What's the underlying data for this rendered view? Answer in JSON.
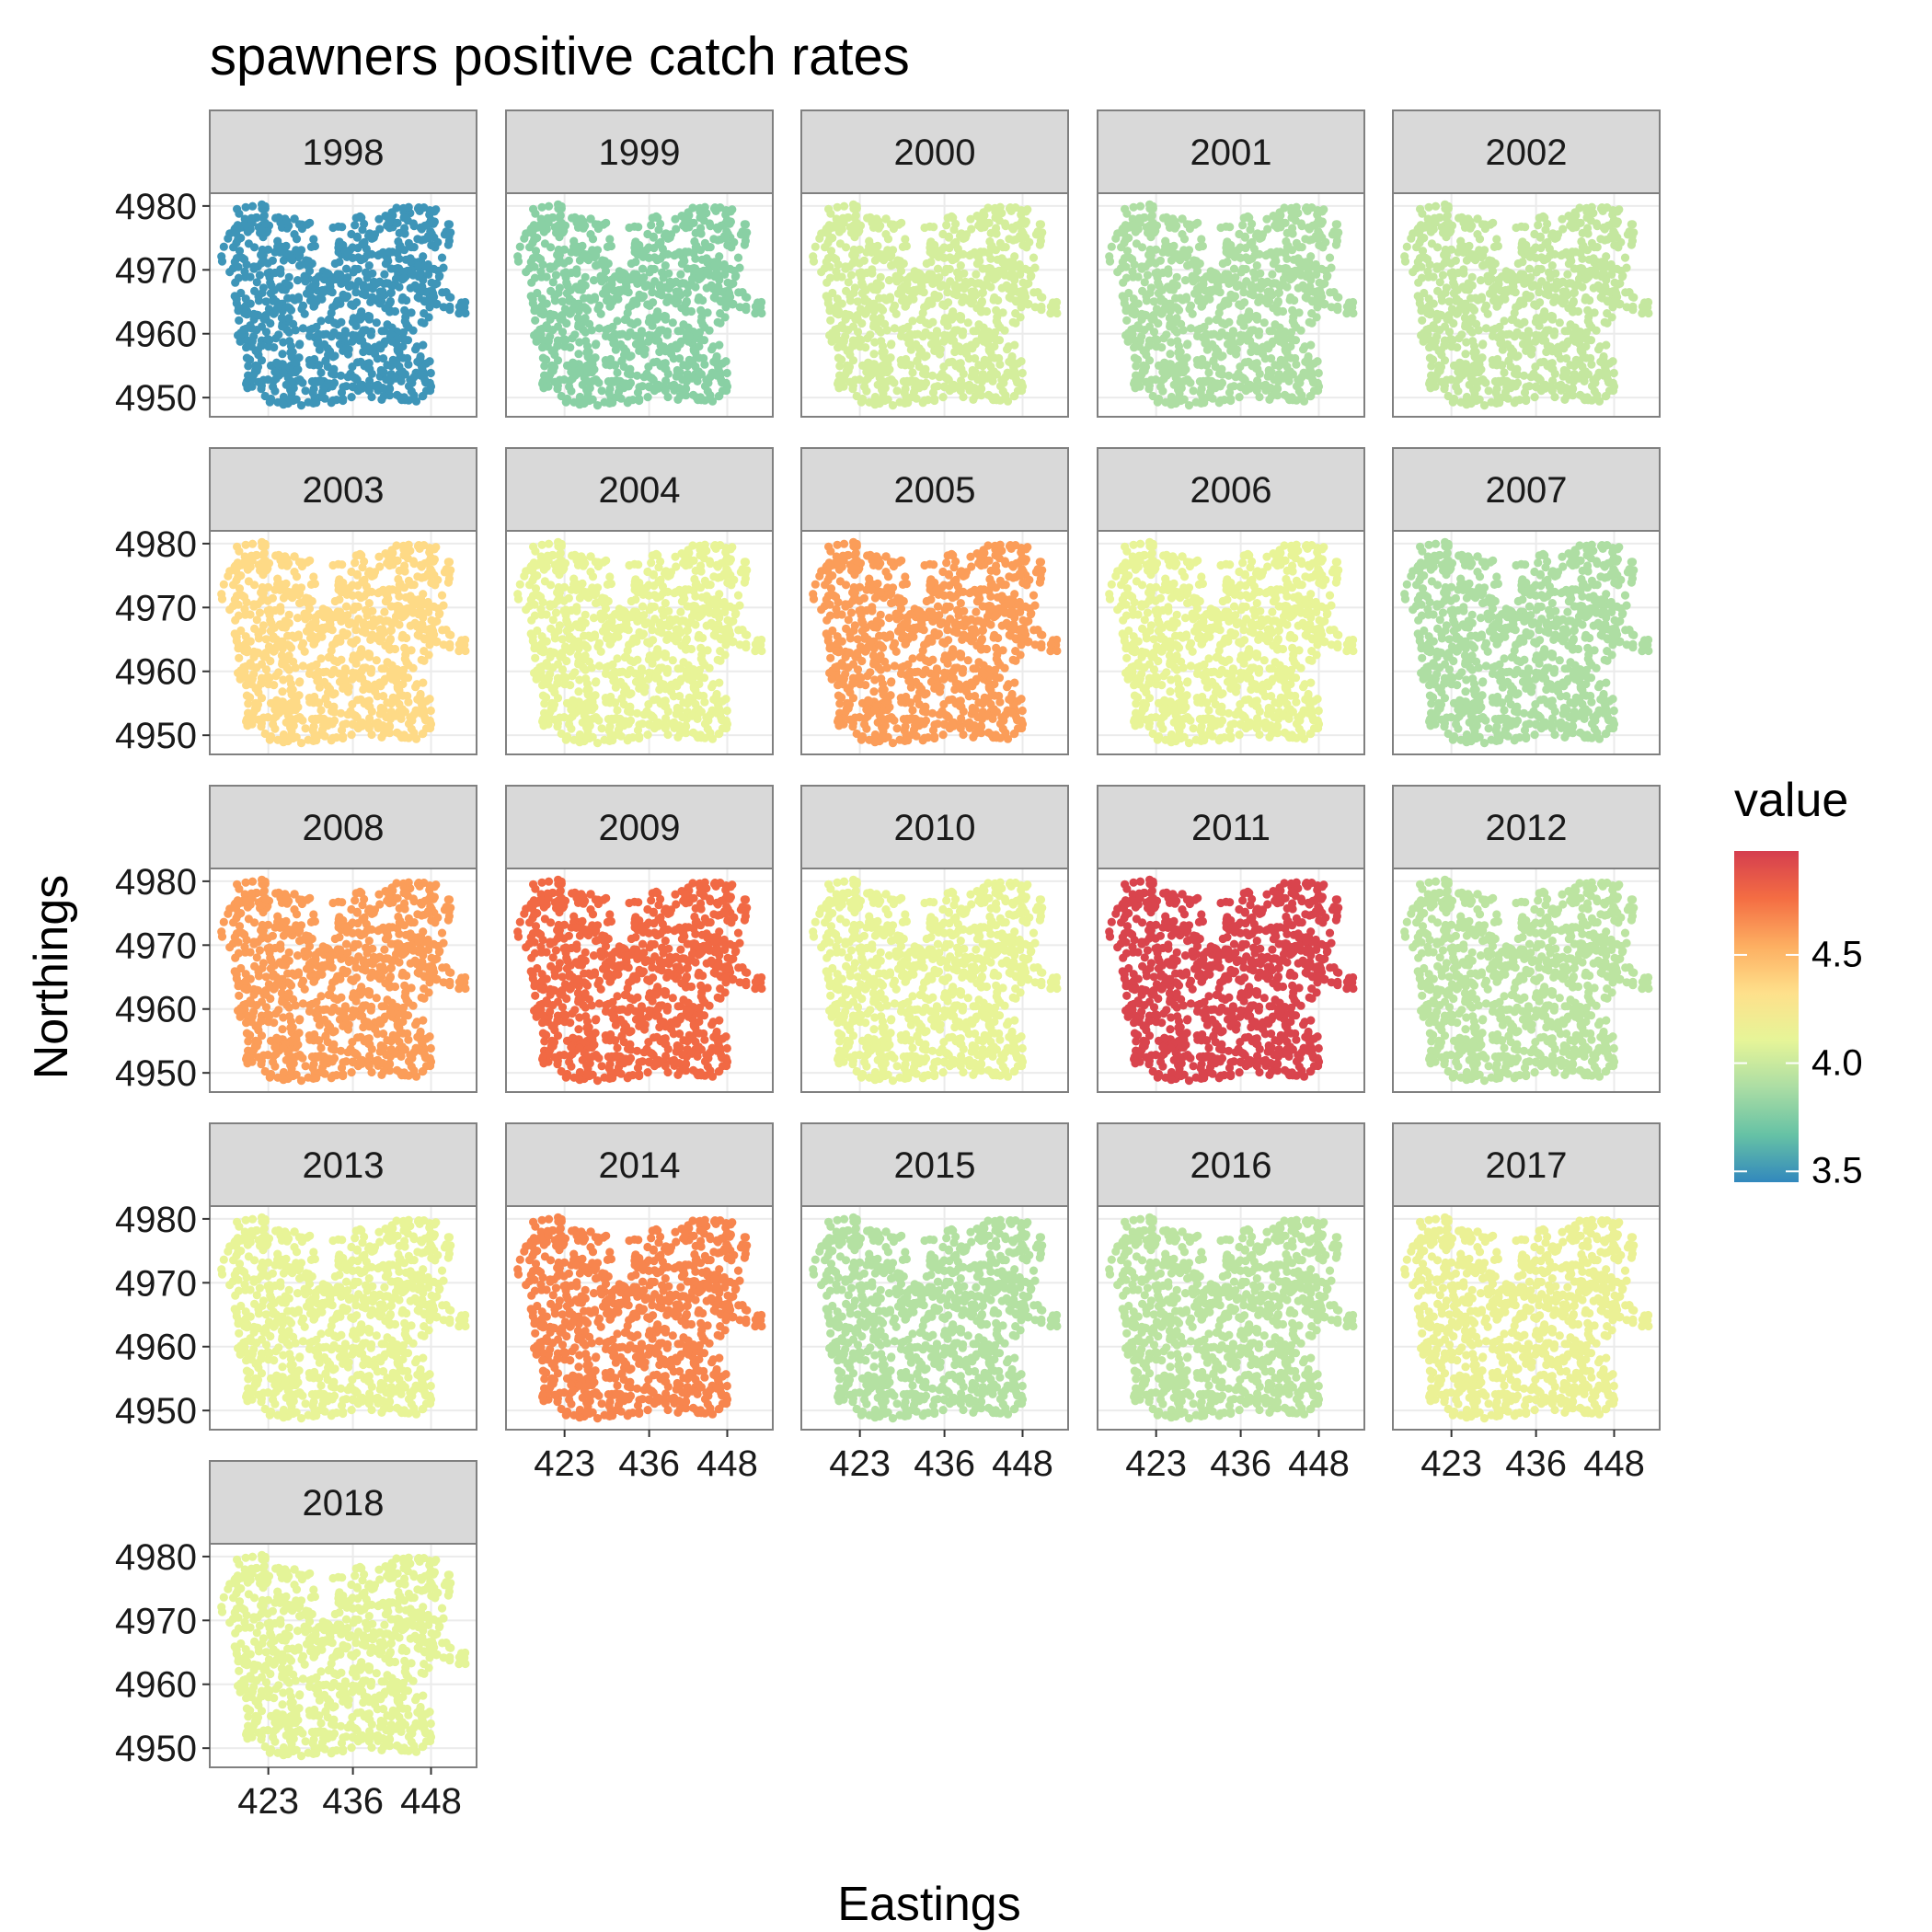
{
  "chart_data": {
    "type": "scatter",
    "title": "spawners positive catch rates",
    "xlabel": "Eastings",
    "ylabel": "Northings",
    "x_ticks": [
      423,
      436,
      448
    ],
    "y_ticks": [
      4950,
      4960,
      4970,
      4980
    ],
    "xlim": [
      414,
      455
    ],
    "ylim": [
      4947,
      4982
    ],
    "grid": true,
    "legend": {
      "title": "value",
      "placement": "right",
      "type": "colorbar",
      "ticks": [
        3.5,
        4.0,
        4.5
      ],
      "range": [
        3.45,
        4.98
      ],
      "colors": [
        "#3288bd",
        "#66c2a5",
        "#abdda4",
        "#e6f598",
        "#fee08b",
        "#fdae61",
        "#f46d43",
        "#d53e4f"
      ]
    },
    "panels": [
      {
        "year": "1998",
        "value": 3.5
      },
      {
        "year": "1999",
        "value": 3.78
      },
      {
        "year": "2000",
        "value": 4.04
      },
      {
        "year": "2001",
        "value": 3.9
      },
      {
        "year": "2002",
        "value": 3.98
      },
      {
        "year": "2003",
        "value": 4.35
      },
      {
        "year": "2004",
        "value": 4.12
      },
      {
        "year": "2005",
        "value": 4.6
      },
      {
        "year": "2006",
        "value": 4.12
      },
      {
        "year": "2007",
        "value": 3.9
      },
      {
        "year": "2008",
        "value": 4.6
      },
      {
        "year": "2009",
        "value": 4.78
      },
      {
        "year": "2010",
        "value": 4.12
      },
      {
        "year": "2011",
        "value": 4.95
      },
      {
        "year": "2012",
        "value": 3.95
      },
      {
        "year": "2013",
        "value": 4.12
      },
      {
        "year": "2014",
        "value": 4.68
      },
      {
        "year": "2015",
        "value": 3.92
      },
      {
        "year": "2016",
        "value": 3.95
      },
      {
        "year": "2017",
        "value": 4.15
      },
      {
        "year": "2018",
        "value": 4.1
      }
    ]
  }
}
